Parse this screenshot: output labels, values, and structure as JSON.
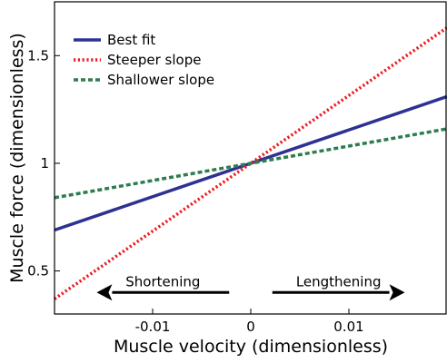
{
  "chart_data": {
    "type": "line",
    "xlabel": "Muscle velocity (dimensionless)",
    "ylabel": "Muscle force (dimensionless)",
    "xlim": [
      -0.02,
      0.02
    ],
    "ylim": [
      0.3,
      1.75
    ],
    "x_ticks": [
      -0.01,
      0,
      0.01
    ],
    "x_tick_labels": [
      "-0.01",
      "0",
      "0.01"
    ],
    "y_ticks": [
      0.5,
      1,
      1.5
    ],
    "y_tick_labels": [
      "0.5",
      "1",
      "1.5"
    ],
    "grid": false,
    "legend_position": "top-left",
    "series": [
      {
        "name": "Best fit",
        "color": "#2e3192",
        "dash": "solid",
        "x": [
          -0.02,
          0.02
        ],
        "y": [
          0.69,
          1.31
        ]
      },
      {
        "name": "Steeper slope",
        "color": "#ec1c24",
        "dash": "dotted",
        "x": [
          -0.02,
          0.02
        ],
        "y": [
          0.37,
          1.63
        ]
      },
      {
        "name": "Shallower slope",
        "color": "#2e7d4f",
        "dash": "dashed",
        "x": [
          -0.02,
          0.02
        ],
        "y": [
          0.84,
          1.16
        ]
      }
    ],
    "annotations": [
      {
        "text": "Shortening",
        "direction": "left",
        "x_start": -0.0022,
        "x_end": -0.0157,
        "y": 0.4
      },
      {
        "text": "Lengthening",
        "direction": "right",
        "x_start": 0.0022,
        "x_end": 0.0157,
        "y": 0.4
      }
    ]
  }
}
